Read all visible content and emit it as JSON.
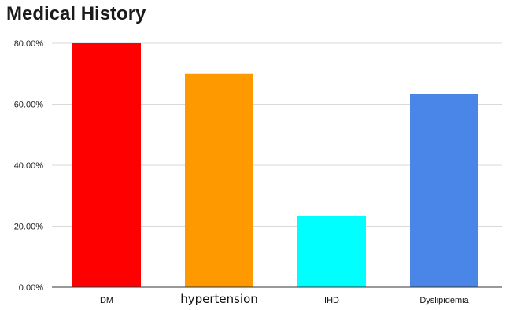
{
  "chart_data": {
    "type": "bar",
    "title": "Medical History",
    "categories": [
      "DM",
      "hypertension",
      "IHD",
      "Dyslipidemia"
    ],
    "values": [
      80,
      70,
      23.3,
      63.3
    ],
    "colors": [
      "#ff0000",
      "#ff9900",
      "#00ffff",
      "#4a86e8"
    ],
    "ylim": [
      0,
      80
    ],
    "yticks": [
      {
        "value": 0,
        "label": "0.00%"
      },
      {
        "value": 20,
        "label": "20.00%"
      },
      {
        "value": 40,
        "label": "40.00%"
      },
      {
        "value": 60,
        "label": "60.00%"
      },
      {
        "value": 80,
        "label": "80.00%"
      }
    ],
    "xlabel": "",
    "ylabel": "",
    "grid": true,
    "legend": "none"
  }
}
